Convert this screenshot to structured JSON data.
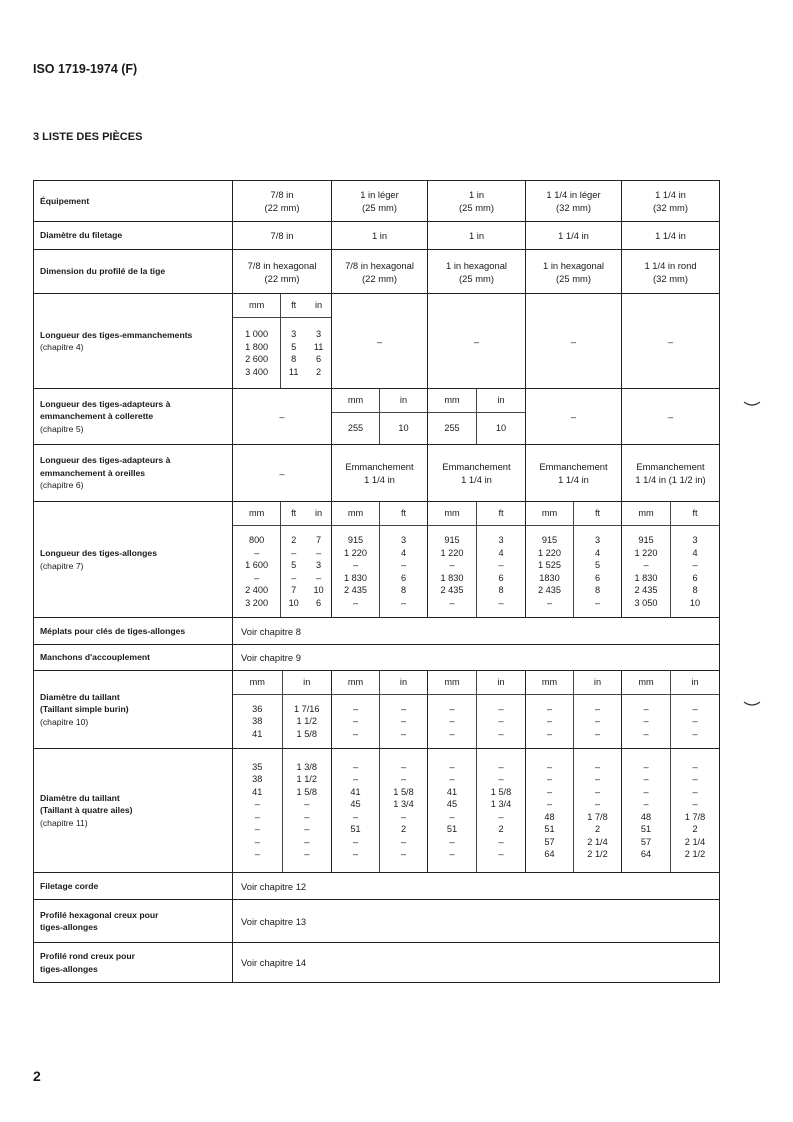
{
  "header": "ISO 1719-1974 (F)",
  "section_title": "3  LISTE DES PIÈCES",
  "page_number": "2",
  "rows": [
    {
      "label": [
        {
          "t": "Équipement",
          "b": true
        }
      ],
      "cells": [
        {
          "lines": [
            "7/8 in",
            "(22 mm)"
          ]
        },
        {
          "lines": [
            "1 in léger",
            "(25 mm)"
          ]
        },
        {
          "lines": [
            "1 in",
            "(25 mm)"
          ]
        },
        {
          "lines": [
            "1 1/4 in léger",
            "(32 mm)"
          ]
        },
        {
          "lines": [
            "1 1/4 in",
            "(32 mm)"
          ]
        }
      ]
    },
    {
      "label": [
        {
          "t": "Diamètre du filetage",
          "b": true
        }
      ],
      "cells": [
        {
          "lines": [
            "7/8 in"
          ]
        },
        {
          "lines": [
            "1 in"
          ]
        },
        {
          "lines": [
            "1 in"
          ]
        },
        {
          "lines": [
            "1 1/4 in"
          ]
        },
        {
          "lines": [
            "1 1/4 in"
          ]
        }
      ]
    },
    {
      "label": [
        {
          "t": "Dimension du profilé de la tige",
          "b": true
        }
      ],
      "cells": [
        {
          "lines": [
            "7/8 in hexagonal",
            "(22 mm)"
          ]
        },
        {
          "lines": [
            "7/8 in hexagonal",
            "(22 mm)"
          ]
        },
        {
          "lines": [
            "1 in hexagonal",
            "(25 mm)"
          ]
        },
        {
          "lines": [
            "1 in hexagonal",
            "(25 mm)"
          ]
        },
        {
          "lines": [
            "1 1/4 in rond",
            "(32 mm)"
          ]
        }
      ]
    },
    {
      "label": [
        {
          "t": "Longueur des tiges-emmanchements",
          "b": true
        },
        {
          "t": "(chapitre 4)",
          "b": false
        }
      ],
      "cells": [
        {
          "sub": {
            "headers": [
              "mm",
              "ft",
              "in"
            ],
            "cols": [
              [
                "1 000",
                "1 800",
                "2 600",
                "3 400"
              ],
              [
                "3",
                "5",
                "8",
                "11"
              ],
              [
                "3",
                "11",
                "6",
                "2"
              ]
            ]
          }
        },
        {
          "lines": [
            "–"
          ]
        },
        {
          "lines": [
            "–"
          ]
        },
        {
          "lines": [
            "–"
          ]
        },
        {
          "lines": [
            "–"
          ]
        }
      ]
    },
    {
      "label": [
        {
          "t": "Longueur des tiges-adapteurs à",
          "b": true
        },
        {
          "t": "emmanchement à collerette",
          "b": true
        },
        {
          "t": "(chapitre 5)",
          "b": false
        }
      ],
      "cells": [
        {
          "lines": [
            "–"
          ]
        },
        {
          "sub": {
            "headers": [
              "mm",
              "in"
            ],
            "cols": [
              [
                "255"
              ],
              [
                "10"
              ]
            ]
          }
        },
        {
          "sub": {
            "headers": [
              "mm",
              "in"
            ],
            "cols": [
              [
                "255"
              ],
              [
                "10"
              ]
            ]
          }
        },
        {
          "lines": [
            "–"
          ]
        },
        {
          "lines": [
            "–"
          ]
        }
      ]
    },
    {
      "label": [
        {
          "t": "Longueur des tiges-adapteurs à",
          "b": true
        },
        {
          "t": "emmanchement à oreilles",
          "b": true
        },
        {
          "t": "(chapitre 6)",
          "b": false
        }
      ],
      "cells": [
        {
          "lines": [
            "–"
          ]
        },
        {
          "lines": [
            "Emmanchement",
            "1 1/4 in"
          ]
        },
        {
          "lines": [
            "Emmanchement",
            "1 1/4 in"
          ]
        },
        {
          "lines": [
            "Emmanchement",
            "1 1/4 in"
          ]
        },
        {
          "lines": [
            "Emmanchement",
            "1 1/4 in (1 1/2 in)"
          ]
        }
      ]
    },
    {
      "label": [
        {
          "t": "Longueur des tiges-allonges",
          "b": true
        },
        {
          "t": "(chapitre 7)",
          "b": false
        }
      ],
      "cells": [
        {
          "sub": {
            "headers": [
              "mm",
              "ft",
              "in"
            ],
            "cols": [
              [
                "800",
                "–",
                "1 600",
                "–",
                "2 400",
                "3 200"
              ],
              [
                "2",
                "–",
                "5",
                "–",
                "7",
                "10"
              ],
              [
                "7",
                "–",
                "3",
                "–",
                "10",
                "6"
              ]
            ]
          }
        },
        {
          "sub": {
            "headers": [
              "mm",
              "ft"
            ],
            "cols": [
              [
                "915",
                "1 220",
                "–",
                "1 830",
                "2 435",
                "–"
              ],
              [
                "3",
                "4",
                "–",
                "6",
                "8",
                "–"
              ]
            ]
          }
        },
        {
          "sub": {
            "headers": [
              "mm",
              "ft"
            ],
            "cols": [
              [
                "915",
                "1 220",
                "–",
                "1 830",
                "2 435",
                "–"
              ],
              [
                "3",
                "4",
                "–",
                "6",
                "8",
                "–"
              ]
            ]
          }
        },
        {
          "sub": {
            "headers": [
              "mm",
              "ft"
            ],
            "cols": [
              [
                "915",
                "1 220",
                "1 525",
                "1830",
                "2 435",
                "–"
              ],
              [
                "3",
                "4",
                "5",
                "6",
                "8",
                "–"
              ]
            ]
          }
        },
        {
          "sub": {
            "headers": [
              "mm",
              "ft"
            ],
            "cols": [
              [
                "915",
                "1 220",
                "–",
                "1 830",
                "2 435",
                "3 050"
              ],
              [
                "3",
                "4",
                "–",
                "6",
                "8",
                "10"
              ]
            ]
          }
        }
      ]
    },
    {
      "label": [
        {
          "t": "Méplats pour clés de tiges-allonges",
          "b": true
        }
      ],
      "span": "Voir chapitre 8"
    },
    {
      "label": [
        {
          "t": "Manchons d'accouplement",
          "b": true
        }
      ],
      "span": "Voir chapitre 9"
    },
    {
      "label": [
        {
          "t": "Diamètre du taillant",
          "b": true
        },
        {
          "t": "(Taillant simple burin)",
          "b": true
        },
        {
          "t": "(chapitre 10)",
          "b": false
        }
      ],
      "cells": [
        {
          "sub": {
            "headers": [
              "mm",
              "in"
            ],
            "cols": [
              [
                "36",
                "38",
                "41"
              ],
              [
                "1 7/16",
                "1 1/2",
                "1 5/8"
              ]
            ]
          }
        },
        {
          "sub": {
            "headers": [
              "mm",
              "in"
            ],
            "cols": [
              [
                "–",
                "–",
                "–"
              ],
              [
                "–",
                "–",
                "–"
              ]
            ]
          }
        },
        {
          "sub": {
            "headers": [
              "mm",
              "in"
            ],
            "cols": [
              [
                "–",
                "–",
                "–"
              ],
              [
                "–",
                "–",
                "–"
              ]
            ]
          }
        },
        {
          "sub": {
            "headers": [
              "mm",
              "in"
            ],
            "cols": [
              [
                "–",
                "–",
                "–"
              ],
              [
                "–",
                "–",
                "–"
              ]
            ]
          }
        },
        {
          "sub": {
            "headers": [
              "mm",
              "in"
            ],
            "cols": [
              [
                "–",
                "–",
                "–"
              ],
              [
                "–",
                "–",
                "–"
              ]
            ]
          }
        }
      ]
    },
    {
      "label": [
        {
          "t": "Diamètre du taillant",
          "b": true
        },
        {
          "t": "(Taillant à quatre ailes)",
          "b": true
        },
        {
          "t": "(chapitre 11)",
          "b": false
        }
      ],
      "cells": [
        {
          "sub": {
            "cols": [
              [
                "35",
                "38",
                "41",
                "–",
                "–",
                "–",
                "–",
                "–"
              ],
              [
                "1 3/8",
                "1 1/2",
                "1 5/8",
                "–",
                "–",
                "–",
                "–",
                "–"
              ]
            ]
          }
        },
        {
          "sub": {
            "cols": [
              [
                "–",
                "–",
                "41",
                "45",
                "–",
                "51",
                "–",
                "–"
              ],
              [
                "–",
                "–",
                "1 5/8",
                "1 3/4",
                "–",
                "2",
                "–",
                "–"
              ]
            ]
          }
        },
        {
          "sub": {
            "cols": [
              [
                "–",
                "–",
                "41",
                "45",
                "–",
                "51",
                "–",
                "–"
              ],
              [
                "–",
                "–",
                "1 5/8",
                "1 3/4",
                "–",
                "2",
                "–",
                "–"
              ]
            ]
          }
        },
        {
          "sub": {
            "cols": [
              [
                "–",
                "–",
                "–",
                "–",
                "48",
                "51",
                "57",
                "64"
              ],
              [
                "–",
                "–",
                "–",
                "–",
                "1 7/8",
                "2",
                "2 1/4",
                "2 1/2"
              ]
            ]
          }
        },
        {
          "sub": {
            "cols": [
              [
                "–",
                "–",
                "–",
                "–",
                "48",
                "51",
                "57",
                "64"
              ],
              [
                "–",
                "–",
                "–",
                "–",
                "1 7/8",
                "2",
                "2 1/4",
                "2 1/2"
              ]
            ]
          }
        }
      ]
    },
    {
      "label": [
        {
          "t": "Filetage corde",
          "b": true
        }
      ],
      "span": "Voir chapitre 12"
    },
    {
      "label": [
        {
          "t": "Profilé hexagonal creux pour",
          "b": true
        },
        {
          "t": "tiges-allonges",
          "b": true
        }
      ],
      "span": "Voir chapitre 13"
    },
    {
      "label": [
        {
          "t": "Profilé rond creux pour",
          "b": true
        },
        {
          "t": "tiges-allonges",
          "b": true
        }
      ],
      "span": "Voir chapitre 14"
    }
  ]
}
